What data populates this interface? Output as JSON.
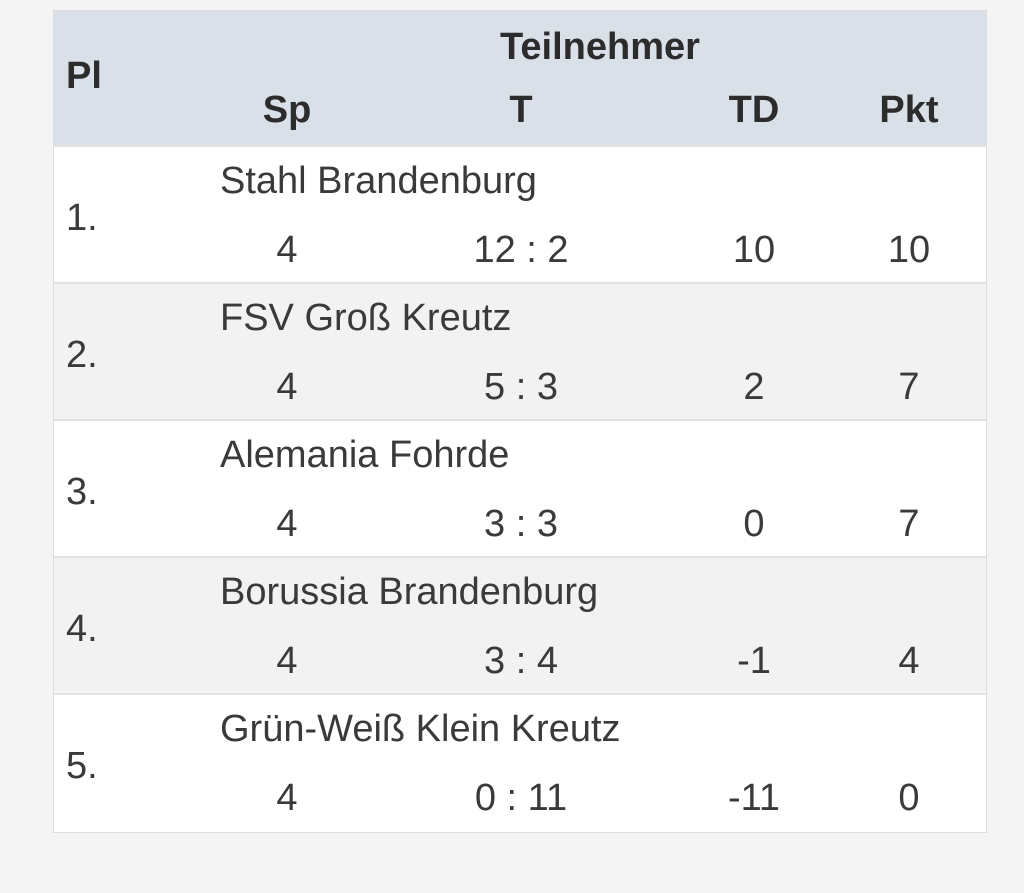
{
  "table": {
    "headers": {
      "place": "Pl",
      "team": "Teilnehmer",
      "games": "Sp",
      "goals": "T",
      "goal_diff": "TD",
      "points": "Pkt"
    },
    "rows": [
      {
        "place": "1.",
        "team": "Stahl Brandenburg",
        "games": "4",
        "goals": "12 : 2",
        "goal_diff": "10",
        "points": "10"
      },
      {
        "place": "2.",
        "team": "FSV Groß Kreutz",
        "games": "4",
        "goals": "5 : 3",
        "goal_diff": "2",
        "points": "7"
      },
      {
        "place": "3.",
        "team": "Alemania Fohrde",
        "games": "4",
        "goals": "3 : 3",
        "goal_diff": "0",
        "points": "7"
      },
      {
        "place": "4.",
        "team": "Borussia Brandenburg",
        "games": "4",
        "goals": "3 : 4",
        "goal_diff": "-1",
        "points": "4"
      },
      {
        "place": "5.",
        "team": "Grün-Weiß Klein Kreutz",
        "games": "4",
        "goals": "0 : 11",
        "goal_diff": "-11",
        "points": "0"
      }
    ]
  },
  "colors": {
    "header_bg": "#dae0e8",
    "row_alt_bg": "#f2f2f2",
    "page_bg": "#f4f4f4"
  }
}
